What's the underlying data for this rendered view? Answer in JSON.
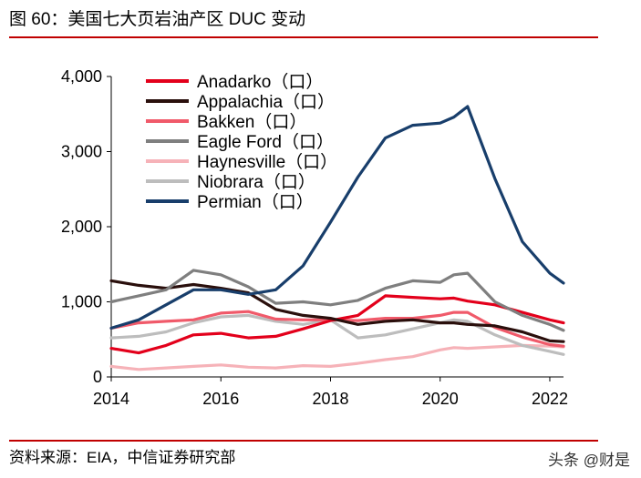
{
  "title": "图 60：美国七大页岩油产区 DUC 变动",
  "source": "资料来源：EIA，中信证券研究部",
  "watermark": "头条 @财是",
  "chart_data": {
    "type": "line",
    "title": "",
    "xlabel": "",
    "ylabel": "",
    "xlim": [
      2014,
      2022.25
    ],
    "ylim": [
      0,
      4000
    ],
    "x_ticks": [
      2014,
      2016,
      2018,
      2020,
      2022
    ],
    "y_ticks": [
      0,
      1000,
      2000,
      3000,
      4000
    ],
    "x_tick_labels": [
      "2014",
      "2016",
      "2018",
      "2020",
      "2022"
    ],
    "y_tick_labels": [
      "0",
      "1,000",
      "2,000",
      "3,000",
      "4,000"
    ],
    "grid": false,
    "legend_position": "top-left",
    "x": [
      2014.0,
      2014.5,
      2015.0,
      2015.5,
      2016.0,
      2016.5,
      2017.0,
      2017.5,
      2018.0,
      2018.5,
      2019.0,
      2019.5,
      2020.0,
      2020.25,
      2020.5,
      2021.0,
      2021.5,
      2022.0,
      2022.25
    ],
    "series": [
      {
        "name": "Anadarko（口）",
        "color": "#e3001b",
        "values": [
          380,
          320,
          420,
          560,
          580,
          520,
          540,
          640,
          750,
          820,
          1080,
          1060,
          1040,
          1050,
          1010,
          960,
          860,
          760,
          720
        ]
      },
      {
        "name": "Appalachia（口）",
        "color": "#2a0f0c",
        "values": [
          1280,
          1220,
          1180,
          1230,
          1180,
          1120,
          900,
          820,
          780,
          700,
          740,
          760,
          720,
          720,
          700,
          680,
          600,
          480,
          470
        ]
      },
      {
        "name": "Bakken（口）",
        "color": "#f05a6a",
        "values": [
          650,
          720,
          740,
          760,
          850,
          870,
          770,
          760,
          760,
          750,
          780,
          780,
          820,
          860,
          860,
          660,
          530,
          430,
          410
        ]
      },
      {
        "name": "Eagle Ford（口）",
        "color": "#7f7f7f",
        "values": [
          1000,
          1080,
          1160,
          1420,
          1360,
          1200,
          980,
          1000,
          960,
          1020,
          1180,
          1280,
          1260,
          1360,
          1380,
          1000,
          820,
          700,
          620
        ]
      },
      {
        "name": "Haynesville（口）",
        "color": "#f6b2b8",
        "values": [
          140,
          100,
          120,
          140,
          160,
          130,
          120,
          150,
          140,
          180,
          230,
          270,
          360,
          390,
          380,
          400,
          420,
          410,
          400
        ]
      },
      {
        "name": "Niobrara（口）",
        "color": "#bdbdbd",
        "values": [
          520,
          540,
          600,
          720,
          800,
          820,
          740,
          700,
          760,
          520,
          560,
          640,
          720,
          760,
          740,
          560,
          420,
          340,
          300
        ]
      },
      {
        "name": "Permian（口）",
        "color": "#183e6b",
        "values": [
          650,
          760,
          960,
          1160,
          1160,
          1100,
          1160,
          1480,
          2060,
          2660,
          3180,
          3350,
          3380,
          3460,
          3600,
          2640,
          1800,
          1380,
          1250
        ]
      }
    ]
  }
}
